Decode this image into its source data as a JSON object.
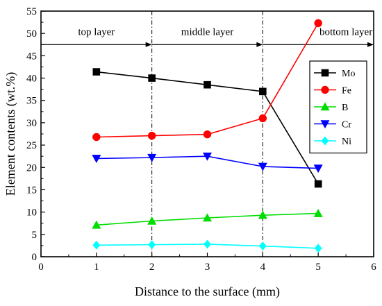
{
  "chart_data": {
    "type": "line",
    "xlabel": "Distance to the surface (mm)",
    "ylabel": "Element contents (wt.%)",
    "xlim": [
      0,
      6
    ],
    "ylim": [
      0,
      55
    ],
    "x_ticks": [
      "0",
      "1",
      "2",
      "3",
      "4",
      "5",
      "6"
    ],
    "y_ticks": [
      "0",
      "5",
      "10",
      "15",
      "20",
      "25",
      "30",
      "35",
      "40",
      "45",
      "50",
      "55"
    ],
    "x": [
      1,
      2,
      3,
      4,
      5
    ],
    "series": [
      {
        "name": "Mo",
        "values": [
          41.4,
          40.0,
          38.5,
          37.0,
          16.3
        ],
        "color": "#000000",
        "marker": "square"
      },
      {
        "name": "Fe",
        "values": [
          26.8,
          27.1,
          27.4,
          31.0,
          52.3
        ],
        "color": "#ff0000",
        "marker": "circle"
      },
      {
        "name": "B",
        "values": [
          7.1,
          8.0,
          8.7,
          9.3,
          9.7
        ],
        "color": "#00dd00",
        "marker": "triangle-up"
      },
      {
        "name": "Cr",
        "values": [
          22.0,
          22.2,
          22.5,
          20.2,
          19.8
        ],
        "color": "#0000ff",
        "marker": "triangle-down"
      },
      {
        "name": "Ni",
        "values": [
          2.6,
          2.7,
          2.8,
          2.4,
          1.9
        ],
        "color": "#00ffff",
        "marker": "diamond"
      }
    ],
    "dividers_x": [
      2,
      4
    ],
    "arrow_y": 47.5,
    "regions": [
      {
        "label": "top layer",
        "x": 1
      },
      {
        "label": "middle layer",
        "x": 3
      },
      {
        "label": "bottom layer",
        "x": 5.5
      }
    ],
    "legend_position": "upper-right",
    "grid": false
  }
}
